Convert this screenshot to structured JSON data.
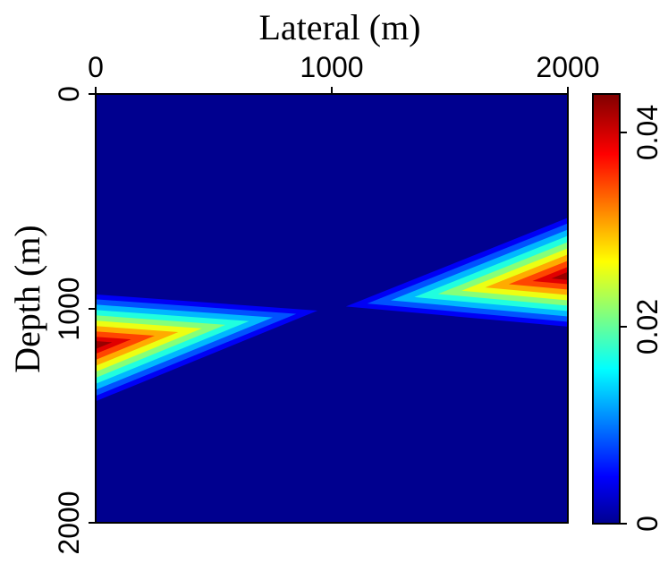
{
  "chart_data": {
    "type": "heatmap",
    "title": "",
    "xlabel": "Lateral (m)",
    "ylabel": "Depth (m)",
    "xlim": [
      0,
      2000
    ],
    "ylim": [
      0,
      2000
    ],
    "x_ticks": [
      "0",
      "1000",
      "2000"
    ],
    "y_ticks": [
      "0",
      "1000",
      "2000"
    ],
    "colorbar": {
      "range": [
        0,
        0.045
      ],
      "ticks": [
        "0",
        "0.02",
        "0.04"
      ],
      "colormap": "jet"
    },
    "features": [
      {
        "name": "left wedge",
        "apex": [
          1000,
          1000
        ],
        "base_x": 0,
        "base_y_range": [
          920,
          1450
        ],
        "peak_center": [
          0,
          1170
        ],
        "peak_value": 0.043
      },
      {
        "name": "right wedge",
        "apex": [
          1000,
          1000
        ],
        "base_x": 2000,
        "base_y_range": [
          560,
          1100
        ],
        "peak_center": [
          2000,
          850
        ],
        "peak_value": 0.043
      }
    ],
    "background_value": 0
  },
  "colors": {
    "background_field": "#00008f",
    "axis": "#000000"
  }
}
